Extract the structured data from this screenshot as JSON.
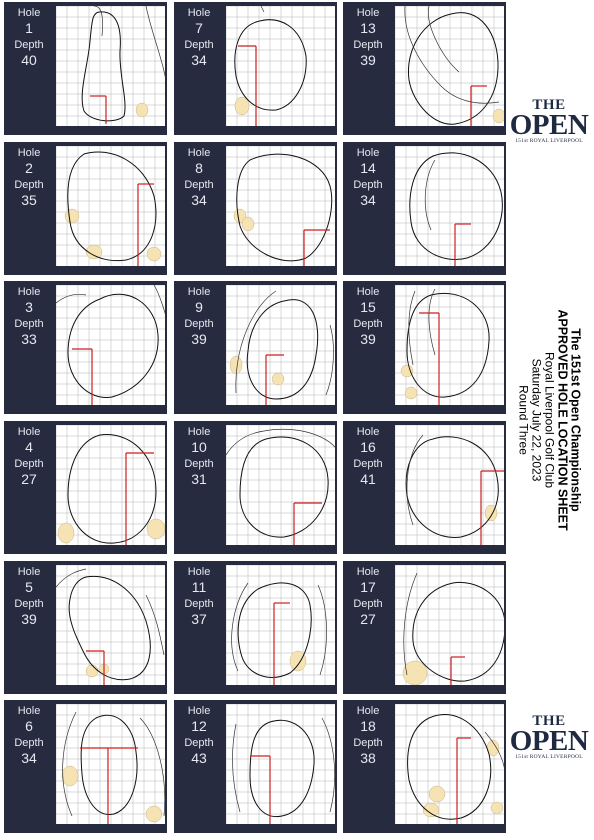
{
  "labels": {
    "hole": "Hole",
    "depth": "Depth"
  },
  "holes": [
    {
      "hole": "1",
      "depth": "40"
    },
    {
      "hole": "7",
      "depth": "34"
    },
    {
      "hole": "13",
      "depth": "39"
    },
    {
      "hole": "2",
      "depth": "35"
    },
    {
      "hole": "8",
      "depth": "34"
    },
    {
      "hole": "14",
      "depth": "34"
    },
    {
      "hole": "3",
      "depth": "33"
    },
    {
      "hole": "9",
      "depth": "39"
    },
    {
      "hole": "15",
      "depth": "39"
    },
    {
      "hole": "4",
      "depth": "27"
    },
    {
      "hole": "10",
      "depth": "31"
    },
    {
      "hole": "16",
      "depth": "41"
    },
    {
      "hole": "5",
      "depth": "39"
    },
    {
      "hole": "11",
      "depth": "37"
    },
    {
      "hole": "17",
      "depth": "27"
    },
    {
      "hole": "6",
      "depth": "34"
    },
    {
      "hole": "12",
      "depth": "43"
    },
    {
      "hole": "18",
      "depth": "38"
    }
  ],
  "logo": {
    "the": "THE",
    "open": "OPEN",
    "sub": "151st ROYAL LIVERPOOL"
  },
  "title": {
    "line1": "The 151st Open Championship",
    "line2": "APPROVED HOLE LOCATION SHEET",
    "line3": "Royal Liverpool Golf Club",
    "line4": "Saturday July 22, 2023",
    "line5": "Round Three"
  },
  "colors": {
    "panel": "#262b3f",
    "pin_line": "#cc1f1f",
    "bunker": "#f5e3b3",
    "grid": "#b3b3b3"
  }
}
